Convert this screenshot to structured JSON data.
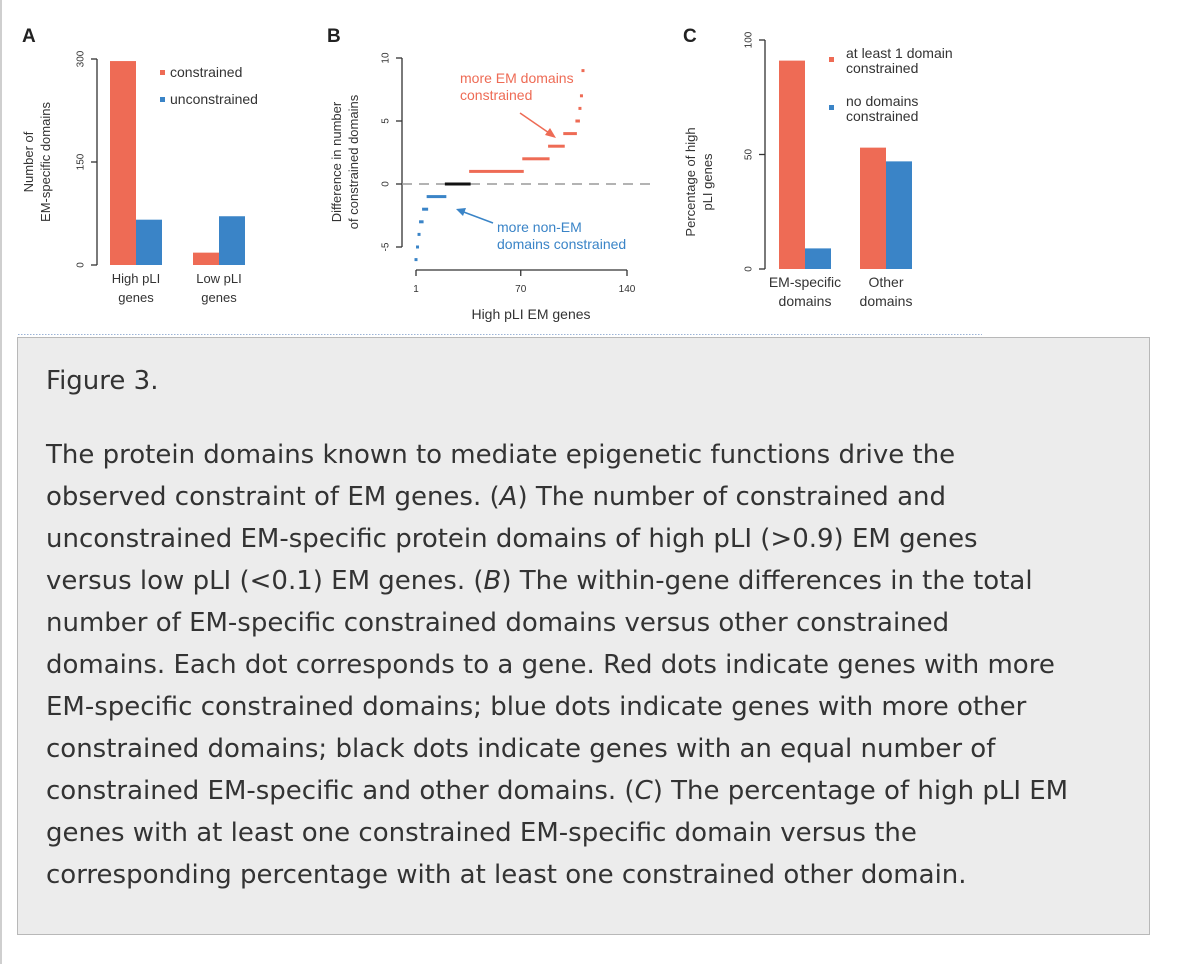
{
  "colors": {
    "red": "#ee6b55",
    "blue": "#3a84c7",
    "black": "#111111",
    "dash": "#9a9a9a"
  },
  "chart_data": [
    {
      "panel": "A",
      "type": "bar",
      "ylabel": "Number of\nEM-specific domains",
      "ylim": [
        0,
        300
      ],
      "yticks": [
        "0",
        "150",
        "300"
      ],
      "categories": [
        "High pLI\ngenes",
        "Low pLI\ngenes"
      ],
      "series": [
        {
          "name": "constrained",
          "color": "red",
          "values": [
            297,
            18
          ]
        },
        {
          "name": "unconstrained",
          "color": "blue",
          "values": [
            66,
            71
          ]
        }
      ],
      "legend_position": "top-right"
    },
    {
      "panel": "B",
      "type": "scatter",
      "xlabel": "High pLI EM genes",
      "ylabel": "Difference in number\nof constrained domains",
      "xlim": [
        1,
        140
      ],
      "ylim": [
        -5,
        10
      ],
      "xticks": [
        "1",
        "70",
        "140"
      ],
      "yticks": [
        "-5",
        "0",
        "5",
        "10"
      ],
      "reference_line": 0,
      "segments": [
        {
          "value": -6,
          "x_from": 1,
          "x_to": 1,
          "color": "blue"
        },
        {
          "value": -5,
          "x_from": 2,
          "x_to": 2,
          "color": "blue"
        },
        {
          "value": -4,
          "x_from": 3,
          "x_to": 3,
          "color": "blue"
        },
        {
          "value": -3,
          "x_from": 4,
          "x_to": 5,
          "color": "blue"
        },
        {
          "value": -2,
          "x_from": 6,
          "x_to": 8,
          "color": "blue"
        },
        {
          "value": -1,
          "x_from": 9,
          "x_to": 20,
          "color": "blue"
        },
        {
          "value": 0,
          "x_from": 21,
          "x_to": 36,
          "color": "black"
        },
        {
          "value": 1,
          "x_from": 37,
          "x_to": 71,
          "color": "red"
        },
        {
          "value": 2,
          "x_from": 72,
          "x_to": 88,
          "color": "red"
        },
        {
          "value": 3,
          "x_from": 89,
          "x_to": 98,
          "color": "red"
        },
        {
          "value": 4,
          "x_from": 99,
          "x_to": 106,
          "color": "red"
        },
        {
          "value": 5,
          "x_from": 107,
          "x_to": 108,
          "color": "red"
        },
        {
          "value": 6,
          "x_from": 109,
          "x_to": 109,
          "color": "red"
        },
        {
          "value": 7,
          "x_from": 110,
          "x_to": 110,
          "color": "red"
        },
        {
          "value": 9,
          "x_from": 111,
          "x_to": 111,
          "color": "red"
        }
      ],
      "annotations": [
        {
          "text": "more EM domains\nconstrained",
          "color": "red"
        },
        {
          "text": "more non-EM\ndomains constrained",
          "color": "blue"
        }
      ]
    },
    {
      "panel": "C",
      "type": "bar",
      "ylabel": "Percentage of high\npLI genes",
      "ylim": [
        0,
        100
      ],
      "yticks": [
        "0",
        "50",
        "100"
      ],
      "categories": [
        "EM-specific\ndomains",
        "Other\ndomains"
      ],
      "series": [
        {
          "name": "at least 1 domain\nconstrained",
          "color": "red",
          "values": [
            91,
            53
          ]
        },
        {
          "name": "no domains\nconstrained",
          "color": "blue",
          "values": [
            9,
            47
          ]
        }
      ],
      "legend_position": "top-right"
    }
  ],
  "caption": {
    "title": "Figure 3.",
    "lines": [
      "The protein domains known to mediate epigenetic functions drive the",
      "observed constraint of EM genes. (A) The number of constrained and",
      "unconstrained EM-specific protein domains of high pLI (>0.9) EM genes",
      "versus low pLI (<0.1) EM genes. (B) The within-gene differences in the total",
      "number of EM-specific constrained domains versus other constrained",
      "domains. Each dot corresponds to a gene. Red dots indicate genes with more",
      "EM-specific constrained domains; blue dots indicate genes with more other",
      "constrained domains; black dots indicate genes with an equal number of",
      "constrained EM-specific and other domains. (C) The percentage of high pLI EM",
      "genes with at least one constrained EM-specific domain versus the",
      "corresponding percentage with at least one constrained other domain."
    ]
  }
}
